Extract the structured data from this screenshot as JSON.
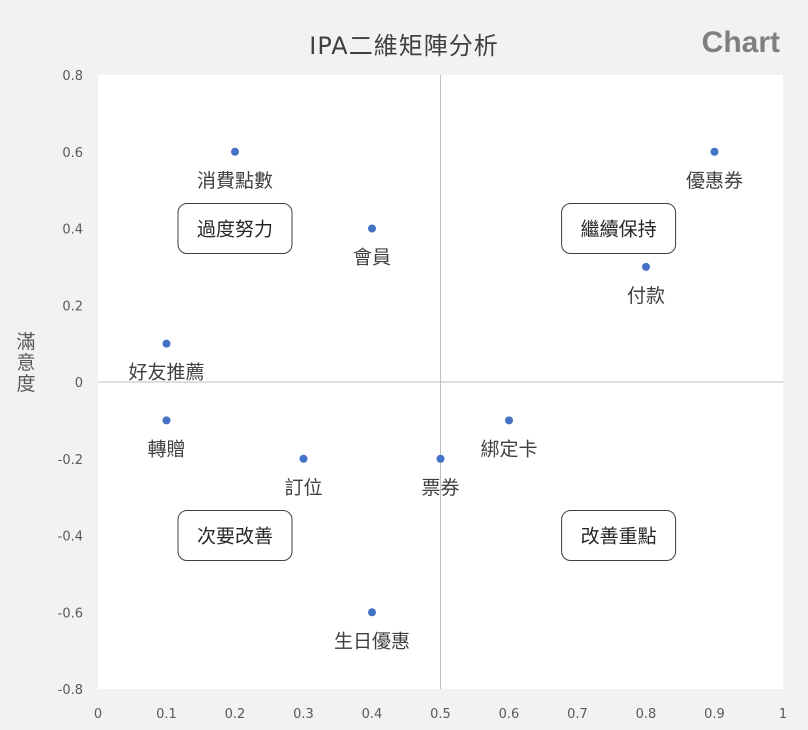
{
  "watermark": "Chart",
  "chart_data": {
    "type": "scatter",
    "title": "IPA二維矩陣分析",
    "xlabel": "",
    "ylabel": "滿意度",
    "xlim": [
      0,
      1
    ],
    "ylim": [
      -0.8,
      0.8
    ],
    "x_ticks": [
      "0",
      "0.1",
      "0.2",
      "0.3",
      "0.4",
      "0.5",
      "0.6",
      "0.7",
      "0.8",
      "0.9",
      "1"
    ],
    "y_ticks": [
      "0.8",
      "0.6",
      "0.4",
      "0.2",
      "0",
      "-0.2",
      "-0.4",
      "-0.6",
      "-0.8"
    ],
    "reference_lines": {
      "x": 0.5,
      "y": 0
    },
    "marker_color": "#4472c4",
    "points": [
      {
        "label": "消費點數",
        "x": 0.2,
        "y": 0.6
      },
      {
        "label": "會員",
        "x": 0.4,
        "y": 0.4
      },
      {
        "label": "優惠券",
        "x": 0.9,
        "y": 0.6
      },
      {
        "label": "付款",
        "x": 0.8,
        "y": 0.3
      },
      {
        "label": "好友推薦",
        "x": 0.1,
        "y": 0.1
      },
      {
        "label": "轉贈",
        "x": 0.1,
        "y": -0.1
      },
      {
        "label": "訂位",
        "x": 0.3,
        "y": -0.2
      },
      {
        "label": "票券",
        "x": 0.5,
        "y": -0.2
      },
      {
        "label": "綁定卡",
        "x": 0.6,
        "y": -0.1
      },
      {
        "label": "生日優惠",
        "x": 0.4,
        "y": -0.6
      }
    ],
    "quadrant_labels": [
      {
        "text": "過度努力",
        "x": 0.2,
        "y": 0.4
      },
      {
        "text": "繼續保持",
        "x": 0.76,
        "y": 0.4
      },
      {
        "text": "次要改善",
        "x": 0.2,
        "y": -0.4
      },
      {
        "text": "改善重點",
        "x": 0.76,
        "y": -0.4
      }
    ]
  }
}
